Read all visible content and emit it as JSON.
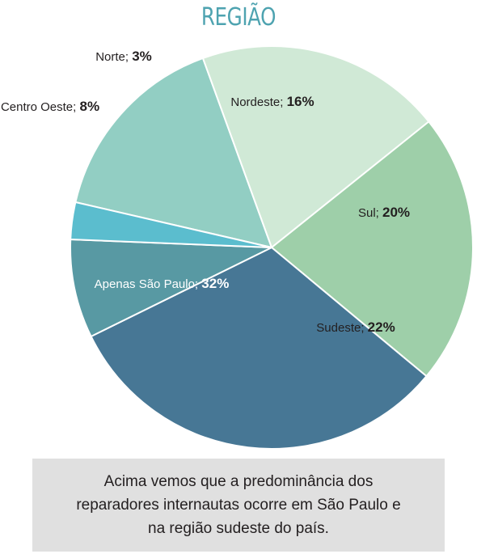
{
  "chart_data": {
    "type": "pie",
    "title": "REGIÃO",
    "categories": [
      "Nordeste",
      "Sul",
      "Sudeste",
      "Apenas São Paulo",
      "Centro Oeste",
      "Norte"
    ],
    "values": [
      16,
      20,
      22,
      32,
      8,
      3
    ],
    "labels": [
      "Nordeste;",
      "Sul;",
      "Sudeste;",
      "Apenas São Paulo;",
      "Centro Oeste;",
      "Norte;"
    ],
    "value_labels": [
      "16%",
      "20%",
      "22%",
      "32%",
      "8%",
      "3%"
    ],
    "colors": [
      "#92cec3",
      "#d0e9d6",
      "#9ecfa9",
      "#477795",
      "#5899a3",
      "#5bbdce"
    ],
    "label_placement": [
      "inside",
      "inside",
      "inside",
      "inside",
      "outside",
      "outside"
    ],
    "label_colors": [
      "#231f20",
      "#231f20",
      "#231f20",
      "#ffffff",
      "#231f20",
      "#231f20"
    ],
    "title_color": "#4ea3b0"
  },
  "caption": {
    "line1": "Acima vemos que a predominância dos",
    "line2": "reparadores internautas ocorre em São Paulo e",
    "line3": "na região sudeste do país."
  }
}
